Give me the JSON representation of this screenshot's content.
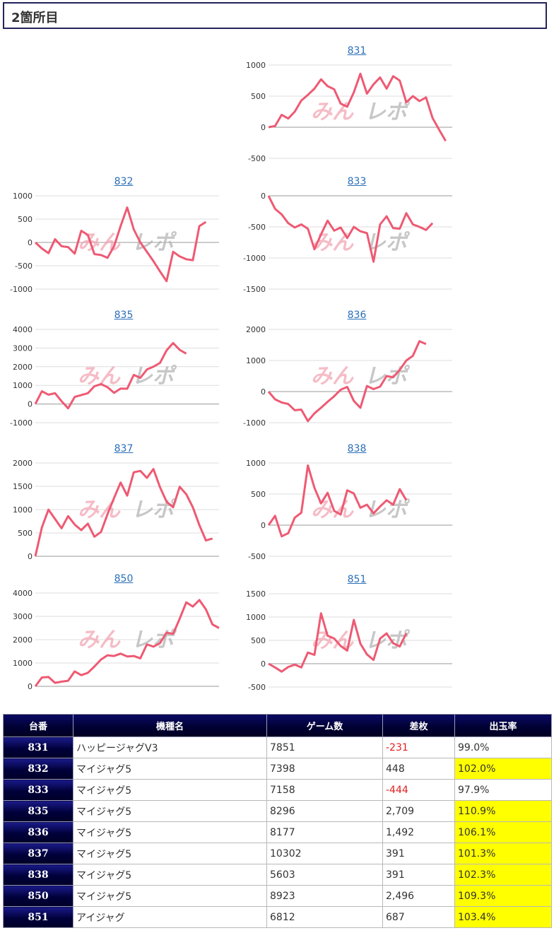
{
  "section_title": "2箇所目",
  "colors": {
    "line": "#ee5a73",
    "grid": "#dddddd",
    "zero": "#999999",
    "header_bg": "#000044",
    "highlight": "#ffff00",
    "negative": "#e02020",
    "link": "#2a6fb8"
  },
  "chart_data": [
    {
      "type": "line",
      "title": "831",
      "ylim": [
        -500,
        1000
      ],
      "yticks": [
        "1000",
        "500",
        "0",
        "-500"
      ],
      "tickvals": [
        1000,
        500,
        0,
        -500
      ],
      "values": [
        0,
        20,
        200,
        140,
        250,
        430,
        520,
        620,
        770,
        660,
        610,
        380,
        330,
        560,
        860,
        540,
        690,
        800,
        620,
        820,
        750,
        400,
        500,
        420,
        480,
        150,
        -40,
        -220
      ]
    },
    {
      "type": "line",
      "title": "832",
      "ylim": [
        -1000,
        1000
      ],
      "yticks": [
        "1000",
        "500",
        "0",
        "-500",
        "-1000"
      ],
      "tickvals": [
        1000,
        500,
        0,
        -500,
        -1000
      ],
      "values": [
        0,
        -130,
        -230,
        70,
        -80,
        -100,
        -240,
        250,
        160,
        -250,
        -270,
        -330,
        -80,
        350,
        750,
        280,
        0,
        -200,
        -400,
        -620,
        -830,
        -200,
        -300,
        -360,
        -380,
        350,
        440
      ]
    },
    {
      "type": "line",
      "title": "833",
      "ylim": [
        -1500,
        0
      ],
      "yticks": [
        "0",
        "-500",
        "-1000",
        "-1500"
      ],
      "tickvals": [
        0,
        -500,
        -1000,
        -1500
      ],
      "values": [
        0,
        -210,
        -300,
        -440,
        -510,
        -460,
        -530,
        -860,
        -620,
        -400,
        -560,
        -510,
        -680,
        -500,
        -570,
        -600,
        -1060,
        -460,
        -330,
        -520,
        -530,
        -280,
        -460,
        -500,
        -550,
        -440
      ]
    },
    {
      "type": "line",
      "title": "835",
      "ylim": [
        -1000,
        4000
      ],
      "yticks": [
        "4000",
        "3000",
        "2000",
        "1000",
        "0",
        "-1000"
      ],
      "tickvals": [
        4000,
        3000,
        2000,
        1000,
        0,
        -1000
      ],
      "values": [
        0,
        680,
        500,
        580,
        150,
        -230,
        380,
        480,
        580,
        950,
        1070,
        900,
        600,
        830,
        820,
        1560,
        1400,
        1850,
        2000,
        2200,
        2870,
        3270,
        2900,
        2700
      ]
    },
    {
      "type": "line",
      "title": "836",
      "ylim": [
        -1000,
        2000
      ],
      "yticks": [
        "2000",
        "1000",
        "0",
        "-1000"
      ],
      "tickvals": [
        2000,
        1000,
        0,
        -1000
      ],
      "values": [
        0,
        -250,
        -350,
        -400,
        -600,
        -580,
        -950,
        -700,
        -520,
        -330,
        -150,
        60,
        150,
        -300,
        -520,
        180,
        80,
        160,
        500,
        460,
        700,
        1000,
        1150,
        1620,
        1530
      ]
    },
    {
      "type": "line",
      "title": "837",
      "ylim": [
        0,
        2000
      ],
      "yticks": [
        "2000",
        "1500",
        "1000",
        "500",
        "0"
      ],
      "tickvals": [
        2000,
        1500,
        1000,
        500,
        0
      ],
      "values": [
        0,
        620,
        1000,
        800,
        600,
        860,
        680,
        560,
        700,
        420,
        520,
        900,
        1250,
        1580,
        1300,
        1800,
        1830,
        1680,
        1870,
        1480,
        1170,
        1050,
        1490,
        1330,
        1050,
        670,
        340,
        380
      ]
    },
    {
      "type": "line",
      "title": "838",
      "ylim": [
        -500,
        1000
      ],
      "yticks": [
        "1000",
        "500",
        "0",
        "-500"
      ],
      "tickvals": [
        1000,
        500,
        0,
        -500
      ],
      "values": [
        0,
        150,
        -180,
        -130,
        120,
        200,
        960,
        600,
        350,
        520,
        230,
        170,
        560,
        510,
        280,
        330,
        190,
        300,
        400,
        330,
        580,
        400
      ]
    },
    {
      "type": "line",
      "title": "850",
      "ylim": [
        0,
        4000
      ],
      "yticks": [
        "4000",
        "3000",
        "2000",
        "1000",
        "0"
      ],
      "tickvals": [
        4000,
        3000,
        2000,
        1000,
        0
      ],
      "values": [
        0,
        380,
        400,
        150,
        200,
        240,
        640,
        480,
        580,
        850,
        1150,
        1330,
        1300,
        1400,
        1280,
        1300,
        1200,
        1800,
        1700,
        1850,
        2300,
        2250,
        2900,
        3600,
        3420,
        3700,
        3300,
        2650,
        2500
      ]
    },
    {
      "type": "line",
      "title": "851",
      "ylim": [
        -500,
        1500
      ],
      "yticks": [
        "1500",
        "1000",
        "500",
        "0",
        "-500"
      ],
      "tickvals": [
        1500,
        1000,
        500,
        0,
        -500
      ],
      "values": [
        0,
        -80,
        -170,
        -70,
        -20,
        -80,
        240,
        190,
        1080,
        600,
        540,
        380,
        280,
        940,
        430,
        200,
        80,
        540,
        650,
        440,
        370,
        650
      ]
    }
  ],
  "table": {
    "headers": [
      "台番",
      "機種名",
      "ゲーム数",
      "差枚",
      "出玉率"
    ],
    "rows": [
      {
        "num": "831",
        "model": "ハッピージャグV3",
        "games": "7851",
        "diff": "-231",
        "rate": "99.0%",
        "neg": true,
        "hi": false
      },
      {
        "num": "832",
        "model": "マイジャグ5",
        "games": "7398",
        "diff": "448",
        "rate": "102.0%",
        "neg": false,
        "hi": true
      },
      {
        "num": "833",
        "model": "マイジャグ5",
        "games": "7158",
        "diff": "-444",
        "rate": "97.9%",
        "neg": true,
        "hi": false
      },
      {
        "num": "835",
        "model": "マイジャグ5",
        "games": "8296",
        "diff": "2,709",
        "rate": "110.9%",
        "neg": false,
        "hi": true
      },
      {
        "num": "836",
        "model": "マイジャグ5",
        "games": "8177",
        "diff": "1,492",
        "rate": "106.1%",
        "neg": false,
        "hi": true
      },
      {
        "num": "837",
        "model": "マイジャグ5",
        "games": "10302",
        "diff": "391",
        "rate": "101.3%",
        "neg": false,
        "hi": true
      },
      {
        "num": "838",
        "model": "マイジャグ5",
        "games": "5603",
        "diff": "391",
        "rate": "102.3%",
        "neg": false,
        "hi": true
      },
      {
        "num": "850",
        "model": "マイジャグ5",
        "games": "8923",
        "diff": "2,496",
        "rate": "109.3%",
        "neg": false,
        "hi": true
      },
      {
        "num": "851",
        "model": "アイジャグ",
        "games": "6812",
        "diff": "687",
        "rate": "103.4%",
        "neg": false,
        "hi": true
      }
    ]
  }
}
